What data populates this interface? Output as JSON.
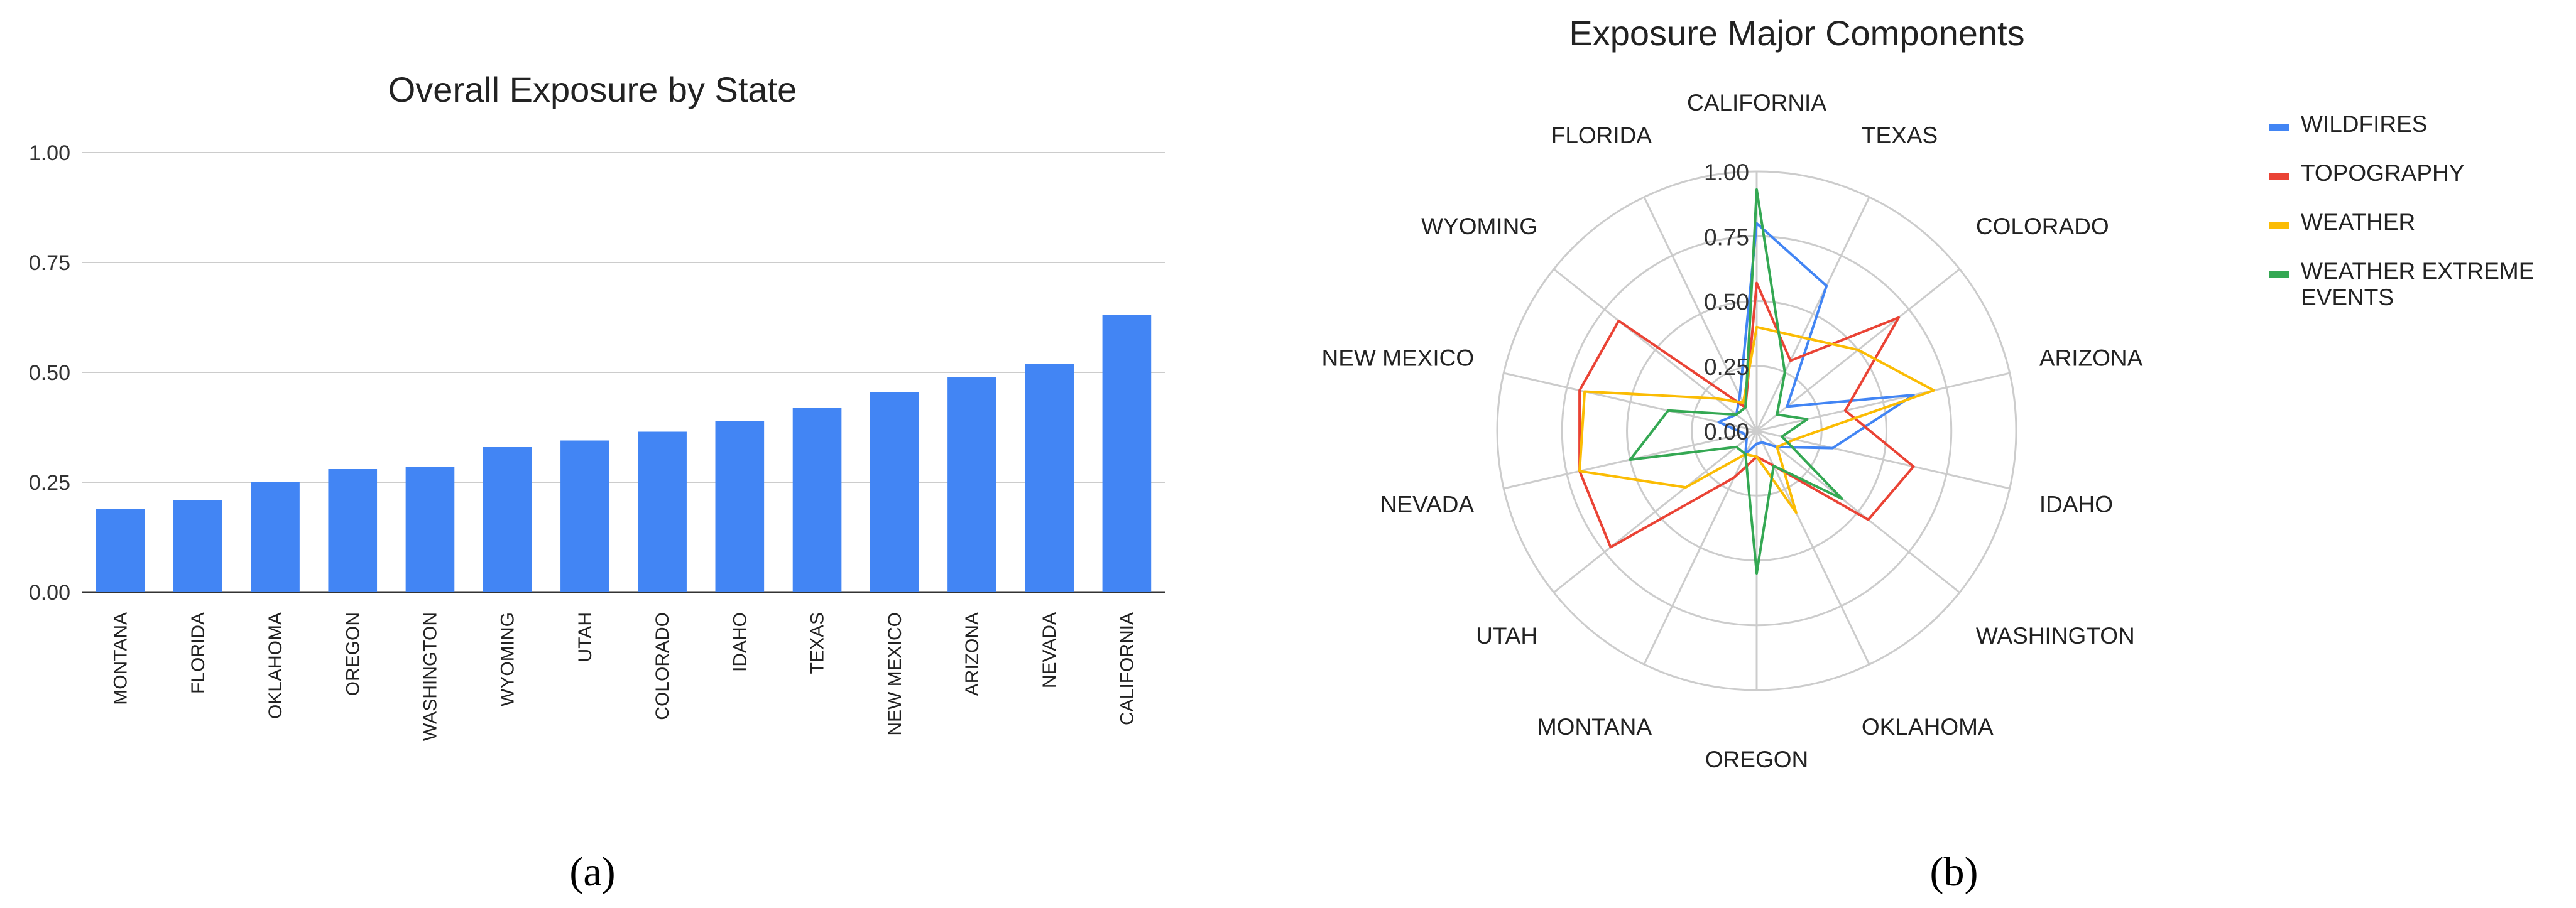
{
  "chart_data": [
    {
      "type": "bar",
      "title": "Overall Exposure by State",
      "categories": [
        "MONTANA",
        "FLORIDA",
        "OKLAHOMA",
        "OREGON",
        "WASHINGTON",
        "WYOMING",
        "UTAH",
        "COLORADO",
        "IDAHO",
        "TEXAS",
        "NEW MEXICO",
        "ARIZONA",
        "NEVADA",
        "CALIFORNIA"
      ],
      "values": [
        0.19,
        0.21,
        0.25,
        0.28,
        0.285,
        0.33,
        0.345,
        0.365,
        0.39,
        0.42,
        0.455,
        0.49,
        0.52,
        0.63
      ],
      "ylim": [
        0,
        1.0
      ],
      "yticks": [
        "0.00",
        "0.25",
        "0.50",
        "0.75",
        "1.00"
      ],
      "grid": true,
      "color": "#4285F4",
      "panel_label": "(a)"
    },
    {
      "type": "radar",
      "title": "Exposure Major Components",
      "categories": [
        "CALIFORNIA",
        "TEXAS",
        "COLORADO",
        "ARIZONA",
        "IDAHO",
        "WASHINGTON",
        "OKLAHOMA",
        "OREGON",
        "MONTANA",
        "UTAH",
        "NEVADA",
        "NEW MEXICO",
        "WYOMING",
        "FLORIDA"
      ],
      "rlim": [
        0,
        1.0
      ],
      "rticks": [
        "0.00",
        "0.25",
        "0.50",
        "0.75",
        "1.00"
      ],
      "legend_position": "right",
      "series": [
        {
          "name": "WILDFIRES",
          "color": "#4285F4",
          "values": [
            0.8,
            0.62,
            0.15,
            0.62,
            0.3,
            0.1,
            0.05,
            0.05,
            0.1,
            0.05,
            0.05,
            0.15,
            0.1,
            0.15
          ]
        },
        {
          "name": "TOPOGRAPHY",
          "color": "#EA4335",
          "values": [
            0.57,
            0.3,
            0.7,
            0.35,
            0.62,
            0.55,
            0.15,
            0.1,
            0.2,
            0.72,
            0.7,
            0.7,
            0.68,
            0.1
          ]
        },
        {
          "name": "WEATHER",
          "color": "#FBBC04",
          "values": [
            0.4,
            0.4,
            0.5,
            0.7,
            0.15,
            0.1,
            0.35,
            0.1,
            0.1,
            0.35,
            0.7,
            0.68,
            0.2,
            0.12
          ]
        },
        {
          "name": "WEATHER EXTREME EVENTS",
          "color": "#34A853",
          "values": [
            0.93,
            0.25,
            0.1,
            0.2,
            0.1,
            0.42,
            0.15,
            0.55,
            0.1,
            0.1,
            0.5,
            0.35,
            0.1,
            0.1
          ]
        }
      ],
      "panel_label": "(b)"
    }
  ]
}
